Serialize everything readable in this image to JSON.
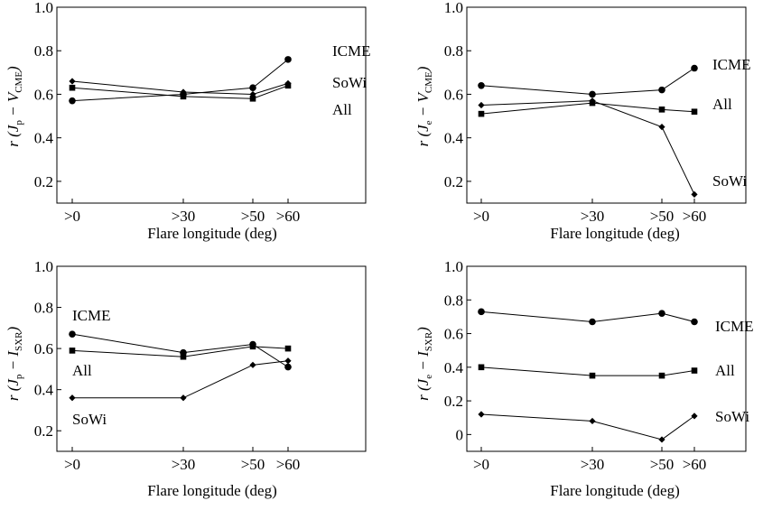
{
  "chart_data": [
    {
      "type": "line",
      "x_categories": [
        ">0",
        ">30",
        ">50",
        ">60"
      ],
      "x": [
        0,
        30,
        50,
        60
      ],
      "xlabel": "Flare longitude (deg)",
      "ylabel": {
        "main": "r (J",
        "sub1": "p",
        "mid": " − V",
        "sub2": "CME",
        "end": ")"
      },
      "ylim": [
        0.1,
        1.0
      ],
      "yticks": [
        {
          "v": 0.2,
          "t": "0.2"
        },
        {
          "v": 0.4,
          "t": "0.4"
        },
        {
          "v": 0.6,
          "t": "0.6"
        },
        {
          "v": 0.8,
          "t": "0.8"
        },
        {
          "v": 1.0,
          "t": "1.0"
        }
      ],
      "series": [
        {
          "name": "ICME",
          "marker": "circle",
          "values": [
            0.57,
            0.6,
            0.63,
            0.76
          ]
        },
        {
          "name": "SoWi",
          "marker": "diamond",
          "values": [
            0.66,
            0.61,
            0.6,
            0.65
          ]
        },
        {
          "name": "All",
          "marker": "square",
          "values": [
            0.63,
            0.59,
            0.58,
            0.64
          ]
        }
      ]
    },
    {
      "type": "line",
      "x_categories": [
        ">0",
        ">30",
        ">50",
        ">60"
      ],
      "x": [
        0,
        30,
        50,
        60
      ],
      "xlabel": "Flare longitude (deg)",
      "ylabel": {
        "main": "r (J",
        "sub1": "e",
        "mid": " − V",
        "sub2": "CME",
        "end": ")"
      },
      "ylim": [
        0.1,
        1.0
      ],
      "yticks": [
        {
          "v": 0.2,
          "t": "0.2"
        },
        {
          "v": 0.4,
          "t": "0.4"
        },
        {
          "v": 0.6,
          "t": "0.6"
        },
        {
          "v": 0.8,
          "t": "0.8"
        },
        {
          "v": 1.0,
          "t": "1.0"
        }
      ],
      "series": [
        {
          "name": "ICME",
          "marker": "circle",
          "values": [
            0.64,
            0.6,
            0.62,
            0.72
          ]
        },
        {
          "name": "All",
          "marker": "square",
          "values": [
            0.51,
            0.56,
            0.53,
            0.52
          ]
        },
        {
          "name": "SoWi",
          "marker": "diamond",
          "values": [
            0.55,
            0.57,
            0.45,
            0.14
          ]
        }
      ]
    },
    {
      "type": "line",
      "x_categories": [
        ">0",
        ">30",
        ">50",
        ">60"
      ],
      "x": [
        0,
        30,
        50,
        60
      ],
      "xlabel": "Flare longitude (deg)",
      "ylabel": {
        "main": "r (J",
        "sub1": "p",
        "mid": " − I",
        "sub2": "SXR",
        "end": ")"
      },
      "ylim": [
        0.1,
        1.0
      ],
      "yticks": [
        {
          "v": 0.2,
          "t": "0.2"
        },
        {
          "v": 0.4,
          "t": "0.4"
        },
        {
          "v": 0.6,
          "t": "0.6"
        },
        {
          "v": 0.8,
          "t": "0.8"
        },
        {
          "v": 1.0,
          "t": "1.0"
        }
      ],
      "series": [
        {
          "name": "ICME",
          "marker": "circle",
          "values": [
            0.67,
            0.58,
            0.62,
            0.51
          ]
        },
        {
          "name": "All",
          "marker": "square",
          "values": [
            0.59,
            0.56,
            0.61,
            0.6
          ]
        },
        {
          "name": "SoWi",
          "marker": "diamond",
          "values": [
            0.36,
            0.36,
            0.52,
            0.54
          ]
        }
      ]
    },
    {
      "type": "line",
      "x_categories": [
        ">0",
        ">30",
        ">50",
        ">60"
      ],
      "x": [
        0,
        30,
        50,
        60
      ],
      "xlabel": "Flare longitude (deg)",
      "ylabel": {
        "main": "r (J",
        "sub1": "e",
        "mid": " − I",
        "sub2": "SXR",
        "end": ")"
      },
      "ylim": [
        -0.1,
        1.0
      ],
      "yticks": [
        {
          "v": 0,
          "t": "0"
        },
        {
          "v": 0.2,
          "t": "0.2"
        },
        {
          "v": 0.4,
          "t": "0.4"
        },
        {
          "v": 0.6,
          "t": "0.6"
        },
        {
          "v": 0.8,
          "t": "0.8"
        },
        {
          "v": 1.0,
          "t": "1.0"
        }
      ],
      "series": [
        {
          "name": "ICME",
          "marker": "circle",
          "values": [
            0.73,
            0.67,
            0.72,
            0.67
          ]
        },
        {
          "name": "All",
          "marker": "square",
          "values": [
            0.4,
            0.35,
            0.35,
            0.38
          ]
        },
        {
          "name": "SoWi",
          "marker": "diamond",
          "values": [
            0.12,
            0.08,
            -0.03,
            0.11
          ]
        }
      ]
    }
  ]
}
